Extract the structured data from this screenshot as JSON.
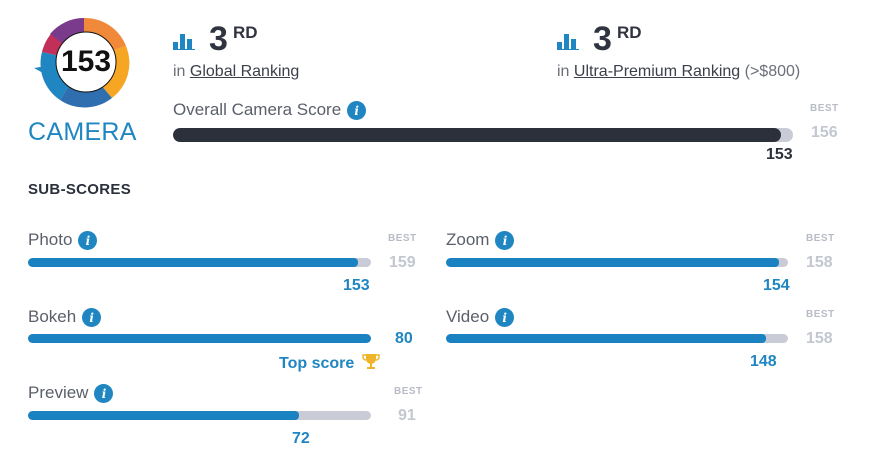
{
  "badge": {
    "score": "153",
    "label": "CAMERA"
  },
  "rankings": [
    {
      "rank": "3",
      "suffix": "RD",
      "prefix": "in",
      "link": "Global Ranking",
      "extra": ""
    },
    {
      "rank": "3",
      "suffix": "RD",
      "prefix": "in",
      "link": "Ultra-Premium Ranking",
      "extra": "(>$800)"
    }
  ],
  "overall": {
    "label": "Overall Camera Score",
    "best_tag": "BEST",
    "best": "156",
    "score": "153",
    "fraction": 0.981
  },
  "subscores_title": "SUB-SCORES",
  "subscores": {
    "photo": {
      "label": "Photo",
      "best_tag": "BEST",
      "best": "159",
      "score": "153",
      "fraction": 0.962
    },
    "zoom": {
      "label": "Zoom",
      "best_tag": "BEST",
      "best": "158",
      "score": "154",
      "fraction": 0.975
    },
    "bokeh": {
      "label": "Bokeh",
      "score": "80",
      "fraction": 1.0,
      "top_score": "Top score"
    },
    "video": {
      "label": "Video",
      "best_tag": "BEST",
      "best": "158",
      "score": "148",
      "fraction": 0.937
    },
    "preview": {
      "label": "Preview",
      "best_tag": "BEST",
      "best": "91",
      "score": "72",
      "fraction": 0.791
    }
  },
  "icons": {
    "info": "i",
    "trophy": "trophy-icon",
    "ranking": "bar-chart-icon"
  },
  "colors": {
    "accent": "#1f86c1",
    "dark_bar": "#2b303b",
    "track": "#c9ccd6",
    "trophy": "#f0b429"
  }
}
